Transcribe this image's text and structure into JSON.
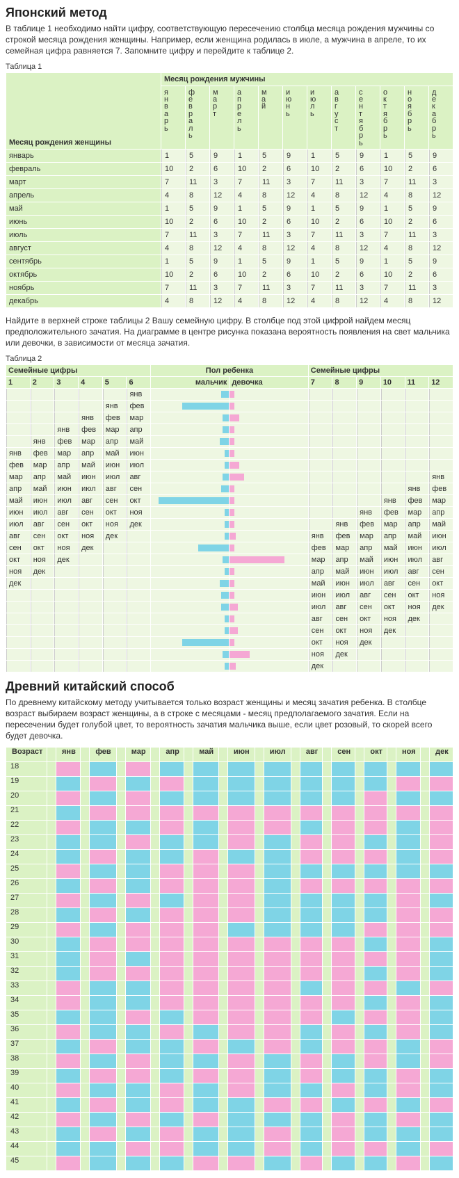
{
  "heading1": "Японский метод",
  "para1": "В таблице 1 необходимо найти цифру, соответствующую пересечению столбца месяца рождения мужчины со строкой месяца рождения женщины. Например, если женщина родилась в июле, а мужчина в апреле, то их семейная цифра равняется 7. Запомните цифру и перейдите к таблице 2.",
  "t1cap": "Таблица 1",
  "t1_toptitle": "Месяц рождения мужчины",
  "t1_lefttitle": "Месяц рождения женщины",
  "months_full": [
    "январь",
    "февраль",
    "март",
    "апрель",
    "май",
    "июнь",
    "июль",
    "август",
    "сентябрь",
    "октябрь",
    "ноябрь",
    "декабрь"
  ],
  "t1_rows": [
    [
      1,
      5,
      9,
      1,
      5,
      9,
      1,
      5,
      9,
      1,
      5,
      9
    ],
    [
      10,
      2,
      6,
      10,
      2,
      6,
      10,
      2,
      6,
      10,
      2,
      6
    ],
    [
      7,
      11,
      3,
      7,
      11,
      3,
      7,
      11,
      3,
      7,
      11,
      3
    ],
    [
      4,
      8,
      12,
      4,
      8,
      12,
      4,
      8,
      12,
      4,
      8,
      12
    ],
    [
      1,
      5,
      9,
      1,
      5,
      9,
      1,
      5,
      9,
      1,
      5,
      9
    ],
    [
      10,
      2,
      6,
      10,
      2,
      6,
      10,
      2,
      6,
      10,
      2,
      6
    ],
    [
      7,
      11,
      3,
      7,
      11,
      3,
      7,
      11,
      3,
      7,
      11,
      3
    ],
    [
      4,
      8,
      12,
      4,
      8,
      12,
      4,
      8,
      12,
      4,
      8,
      12
    ],
    [
      1,
      5,
      9,
      1,
      5,
      9,
      1,
      5,
      9,
      1,
      5,
      9
    ],
    [
      10,
      2,
      6,
      10,
      2,
      6,
      10,
      2,
      6,
      10,
      2,
      6
    ],
    [
      7,
      11,
      3,
      7,
      11,
      3,
      7,
      11,
      3,
      7,
      11,
      3
    ],
    [
      4,
      8,
      12,
      4,
      8,
      12,
      4,
      8,
      12,
      4,
      8,
      12
    ]
  ],
  "para2": "Найдите в верхней строке таблицы 2 Вашу семейную цифру. В столбце под этой цифрой найдем месяц предположительного зачатия. На диаграмме в центре рисунка показана вероятность появления на свет мальчика или девочки, в зависимости от месяца зачатия.",
  "t2cap": "Таблица 2",
  "t2_h_left": "Семейные цифры",
  "t2_h_mid": "Пол ребенка",
  "t2_h_right": "Семейные цифры",
  "t2_h_boy": "мальчик",
  "t2_h_girl": "девочка",
  "t2_nums_left": [
    "1",
    "2",
    "3",
    "4",
    "5",
    "6"
  ],
  "t2_nums_right": [
    "7",
    "8",
    "9",
    "10",
    "11",
    "12"
  ],
  "months_short": [
    "янв",
    "фев",
    "мар",
    "апр",
    "май",
    "июн",
    "июл",
    "авг",
    "сен",
    "окт",
    "ноя",
    "дек"
  ],
  "t2_rows": [
    {
      "l": [
        "",
        "",
        "",
        "",
        "",
        "янв"
      ],
      "b": 10,
      "g": 6,
      "r": [
        "",
        "",
        "",
        "",
        "",
        ""
      ]
    },
    {
      "l": [
        "",
        "",
        "",
        "",
        "янв",
        "фев"
      ],
      "b": 60,
      "g": 6,
      "r": [
        "",
        "",
        "",
        "",
        "",
        ""
      ]
    },
    {
      "l": [
        "",
        "",
        "",
        "янв",
        "фев",
        "мар"
      ],
      "b": 8,
      "g": 12,
      "r": [
        "",
        "",
        "",
        "",
        "",
        ""
      ]
    },
    {
      "l": [
        "",
        "",
        "янв",
        "фев",
        "мар",
        "апр"
      ],
      "b": 8,
      "g": 6,
      "r": [
        "",
        "",
        "",
        "",
        "",
        ""
      ]
    },
    {
      "l": [
        "",
        "янв",
        "фев",
        "мар",
        "апр",
        "май"
      ],
      "b": 12,
      "g": 6,
      "r": [
        "",
        "",
        "",
        "",
        "",
        ""
      ]
    },
    {
      "l": [
        "янв",
        "фев",
        "мар",
        "апр",
        "май",
        "июн"
      ],
      "b": 6,
      "g": 6,
      "r": [
        "",
        "",
        "",
        "",
        "",
        ""
      ]
    },
    {
      "l": [
        "фев",
        "мар",
        "апр",
        "май",
        "июн",
        "июл"
      ],
      "b": 6,
      "g": 12,
      "r": [
        "",
        "",
        "",
        "",
        "",
        ""
      ]
    },
    {
      "l": [
        "мар",
        "апр",
        "май",
        "июн",
        "июл",
        "авг"
      ],
      "b": 8,
      "g": 18,
      "r": [
        "",
        "",
        "",
        "",
        "",
        "янв"
      ]
    },
    {
      "l": [
        "апр",
        "май",
        "июн",
        "июл",
        "авг",
        "сен"
      ],
      "b": 10,
      "g": 6,
      "r": [
        "",
        "",
        "",
        "",
        "янв",
        "фев"
      ]
    },
    {
      "l": [
        "май",
        "июн",
        "июл",
        "авг",
        "сен",
        "окт"
      ],
      "b": 90,
      "g": 6,
      "r": [
        "",
        "",
        "",
        "янв",
        "фев",
        "мар"
      ]
    },
    {
      "l": [
        "июн",
        "июл",
        "авг",
        "сен",
        "окт",
        "ноя"
      ],
      "b": 6,
      "g": 6,
      "r": [
        "",
        "",
        "янв",
        "фев",
        "мар",
        "апр"
      ]
    },
    {
      "l": [
        "июл",
        "авг",
        "сен",
        "окт",
        "ноя",
        "дек"
      ],
      "b": 6,
      "g": 6,
      "r": [
        "",
        "янв",
        "фев",
        "мар",
        "апр",
        "май"
      ]
    },
    {
      "l": [
        "авг",
        "сен",
        "окт",
        "ноя",
        "дек",
        ""
      ],
      "b": 6,
      "g": 8,
      "r": [
        "янв",
        "фев",
        "мар",
        "апр",
        "май",
        "июн"
      ]
    },
    {
      "l": [
        "сен",
        "окт",
        "ноя",
        "дек",
        "",
        ""
      ],
      "b": 40,
      "g": 6,
      "r": [
        "фев",
        "мар",
        "апр",
        "май",
        "июн",
        "июл"
      ]
    },
    {
      "l": [
        "окт",
        "ноя",
        "дек",
        "",
        "",
        ""
      ],
      "b": 8,
      "g": 70,
      "r": [
        "мар",
        "апр",
        "май",
        "июн",
        "июл",
        "авг"
      ]
    },
    {
      "l": [
        "ноя",
        "дек",
        "",
        "",
        "",
        ""
      ],
      "b": 6,
      "g": 6,
      "r": [
        "апр",
        "май",
        "июн",
        "июл",
        "авг",
        "сен"
      ]
    },
    {
      "l": [
        "дек",
        "",
        "",
        "",
        "",
        ""
      ],
      "b": 12,
      "g": 6,
      "r": [
        "май",
        "июн",
        "июл",
        "авг",
        "сен",
        "окт"
      ]
    },
    {
      "l": [
        "",
        "",
        "",
        "",
        "",
        ""
      ],
      "b": 10,
      "g": 6,
      "r": [
        "июн",
        "июл",
        "авг",
        "сен",
        "окт",
        "ноя"
      ]
    },
    {
      "l": [
        "",
        "",
        "",
        "",
        "",
        ""
      ],
      "b": 10,
      "g": 10,
      "r": [
        "июл",
        "авг",
        "сен",
        "окт",
        "ноя",
        "дек"
      ]
    },
    {
      "l": [
        "",
        "",
        "",
        "",
        "",
        ""
      ],
      "b": 6,
      "g": 6,
      "r": [
        "авг",
        "сен",
        "окт",
        "ноя",
        "дек",
        ""
      ]
    },
    {
      "l": [
        "",
        "",
        "",
        "",
        "",
        ""
      ],
      "b": 6,
      "g": 10,
      "r": [
        "сен",
        "окт",
        "ноя",
        "дек",
        "",
        ""
      ]
    },
    {
      "l": [
        "",
        "",
        "",
        "",
        "",
        ""
      ],
      "b": 60,
      "g": 6,
      "r": [
        "окт",
        "ноя",
        "дек",
        "",
        "",
        ""
      ]
    },
    {
      "l": [
        "",
        "",
        "",
        "",
        "",
        ""
      ],
      "b": 8,
      "g": 25,
      "r": [
        "ноя",
        "дек",
        "",
        "",
        "",
        ""
      ]
    },
    {
      "l": [
        "",
        "",
        "",
        "",
        "",
        ""
      ],
      "b": 6,
      "g": 8,
      "r": [
        "дек",
        "",
        "",
        "",
        "",
        ""
      ]
    }
  ],
  "heading2": "Древний китайский способ",
  "para3": "По древнему китайскому методу учитывается только возраст женщины и месяц зачатия ребенка. В столбце возраст выбираем возраст женщины, а в строке с месяцами - месяц предполагаемого зачатия. Если на пересечении будет голубой цвет, то вероятность зачатия мальчика выше, если цвет розовый, то скорей всего будет девочка.",
  "c_age_hdr": "Возраст",
  "c_months": [
    "янв",
    "фев",
    "мар",
    "апр",
    "май",
    "июн",
    "июл",
    "авг",
    "сен",
    "окт",
    "ноя",
    "дек"
  ],
  "c_rows": [
    {
      "a": 18,
      "v": "pbpbbbbbbbbb"
    },
    {
      "a": 19,
      "v": "bpbpbbbbbbpp"
    },
    {
      "a": 20,
      "v": "pbpbbbbbbpbb"
    },
    {
      "a": 21,
      "v": "bppppppppppp"
    },
    {
      "a": 22,
      "v": "pbbpbppbppbp"
    },
    {
      "a": 23,
      "v": "bbpbbpbppbbp"
    },
    {
      "a": 24,
      "v": "bpbbpbbpppbp"
    },
    {
      "a": 25,
      "v": "pbbpppbbbbbb"
    },
    {
      "a": 26,
      "v": "bpbpppbppppp"
    },
    {
      "a": 27,
      "v": "pbpbppbbbbpb"
    },
    {
      "a": 28,
      "v": "bpbpppbbbbpp"
    },
    {
      "a": 29,
      "v": "pbpppbbbbppp"
    },
    {
      "a": 30,
      "v": "bppppppppbpb"
    },
    {
      "a": 31,
      "v": "bpbppppppppb"
    },
    {
      "a": 32,
      "v": "bppppppppbpb"
    },
    {
      "a": 33,
      "v": "pbbppppbppbp"
    },
    {
      "a": 34,
      "v": "pbbppppppbpb"
    },
    {
      "a": 35,
      "v": "bbpbppppbppb"
    },
    {
      "a": 36,
      "v": "pbbpbppbpbpb"
    },
    {
      "a": 37,
      "v": "bpbbpbpbppbp"
    },
    {
      "a": 38,
      "v": "pbpbbpbpbpbp"
    },
    {
      "a": 39,
      "v": "bppbppbpbbpb"
    },
    {
      "a": 40,
      "v": "pbbpbpbbpbpb"
    },
    {
      "a": 41,
      "v": "bpbpbbppbpbp"
    },
    {
      "a": 42,
      "v": "pbpbpbbbpbpb"
    },
    {
      "a": 43,
      "v": "bpbpbbpbpbbb"
    },
    {
      "a": 44,
      "v": "bbppbbpbppbp"
    },
    {
      "a": 45,
      "v": "pbbbppbpbbpb"
    }
  ],
  "colors": {
    "blue": "#7fd4e6",
    "pink": "#f5a8d4",
    "header": "#dbf2c4",
    "body": "#eef7e2"
  }
}
